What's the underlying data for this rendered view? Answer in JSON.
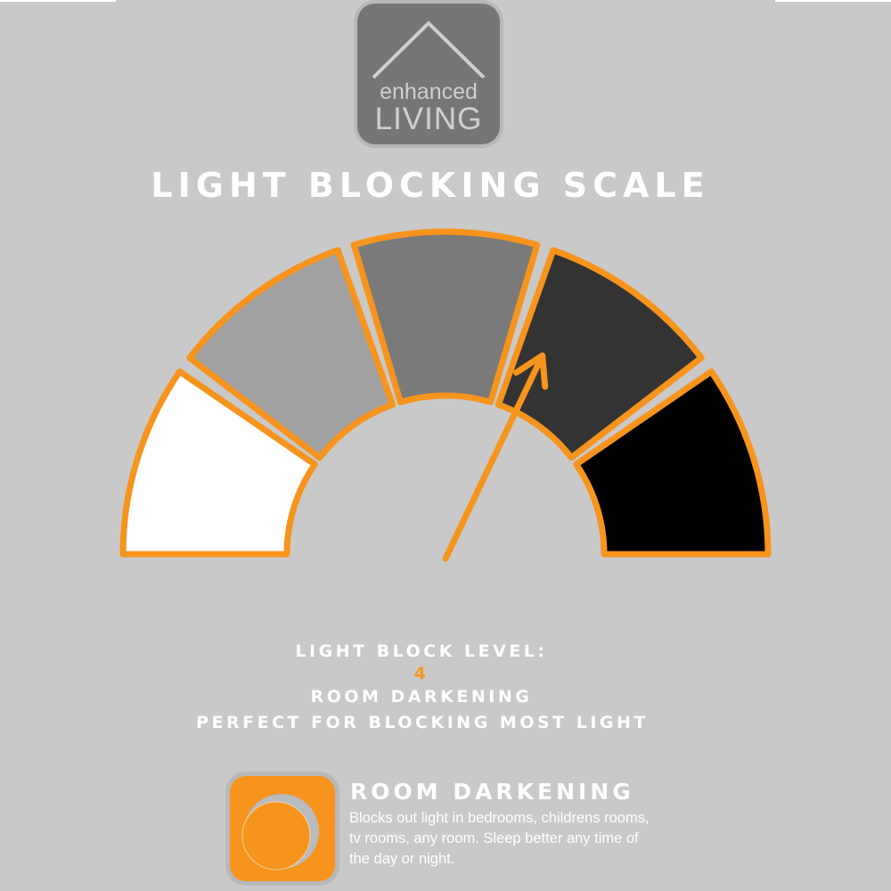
{
  "logo": {
    "line1": "enhanced",
    "line2": "LIVING"
  },
  "title": "LIGHT BLOCKING SCALE",
  "gauge": {
    "levels": 5,
    "current_level": 4,
    "segment_colors": [
      "#ffffff",
      "#a1a1a1",
      "#7a7a7a",
      "#333333",
      "#000000"
    ],
    "border_color": "#f7941d",
    "needle_color": "#f7941d"
  },
  "info": {
    "label": "LIGHT BLOCK LEVEL:",
    "level": "4",
    "name": "ROOM DARKENING",
    "tagline": "PERFECT FOR BLOCKING MOST LIGHT"
  },
  "feature": {
    "icon": "moon-icon",
    "title": "ROOM DARKENING",
    "description": "Blocks out light in bedrooms, childrens rooms, tv rooms, any room. Sleep better any time of the day or night."
  },
  "colors": {
    "background": "#c9c9c9",
    "accent": "#f7941d",
    "text": "#ffffff"
  }
}
